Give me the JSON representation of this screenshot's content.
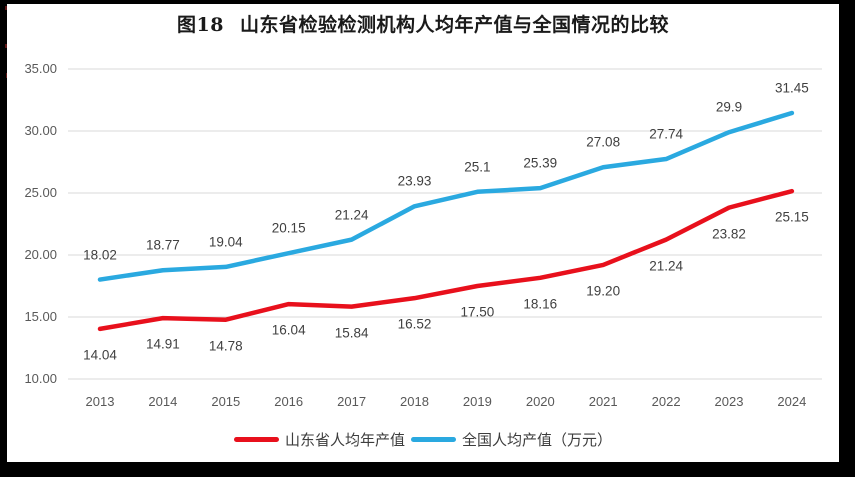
{
  "title": {
    "prefix": "图18",
    "text": "山东省检验检测机构人均年产值与全国情况的比较"
  },
  "chart_data": {
    "type": "line",
    "x": [
      "2013",
      "2014",
      "2015",
      "2016",
      "2017",
      "2018",
      "2019",
      "2020",
      "2021",
      "2022",
      "2023",
      "2024"
    ],
    "series": [
      {
        "name": "山东省人均年产值",
        "color": "#e8101c",
        "values": [
          14.04,
          14.91,
          14.78,
          16.04,
          15.84,
          16.52,
          17.5,
          18.16,
          19.2,
          21.24,
          23.82,
          25.15
        ],
        "point_labels": [
          "14.04",
          "14.91",
          "14.78",
          "16.04",
          "15.84",
          "16.52",
          "17.50",
          "18.16",
          "19.20",
          "21.24",
          "23.82",
          "25.15"
        ],
        "label_position": "below"
      },
      {
        "name": "全国人均产值（万元）",
        "color": "#2aa9e0",
        "values": [
          18.02,
          18.77,
          19.04,
          20.15,
          21.24,
          23.93,
          25.1,
          25.39,
          27.08,
          27.74,
          29.9,
          31.45
        ],
        "point_labels": [
          "18.02",
          "18.77",
          "19.04",
          "20.15",
          "21.24",
          "23.93",
          "25.1",
          "25.39",
          "27.08",
          "27.74",
          "29.9",
          "31.45"
        ],
        "label_position": "above"
      }
    ],
    "ylim": [
      10,
      35
    ],
    "yticks": [
      "35.00",
      "30.00",
      "25.00",
      "20.00",
      "15.00",
      "10.00"
    ],
    "xlabel": "",
    "ylabel": "",
    "grid": "horizontal",
    "legend_position": "bottom",
    "colors": {
      "gridline": "#d9d9d9",
      "tick_text": "#595959",
      "data_label_text": "#404040",
      "legend_text": "#3d3d3d",
      "frame_border": "#000000",
      "background": "#ffffff"
    }
  }
}
